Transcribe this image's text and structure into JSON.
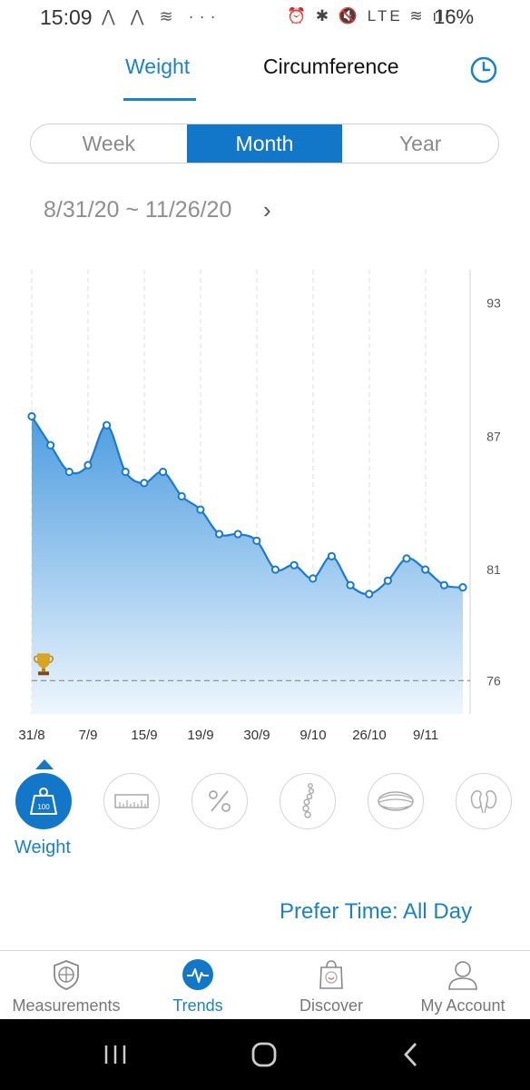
{
  "status": {
    "time": "15:09",
    "left_icons": "⋀ ⋀ ≋ ···",
    "right_icons": "⏰ ✱ 🔇 LTE ≋ ıll",
    "battery": "16%"
  },
  "tabs": {
    "weight": "Weight",
    "circumference": "Circumference"
  },
  "segments": [
    "Week",
    "Month",
    "Year"
  ],
  "active_segment": "Month",
  "date_range": "8/31/20 ~ 11/26/20",
  "chart_data": {
    "type": "area",
    "x_ticks": [
      "31/8",
      "7/9",
      "15/9",
      "19/9",
      "30/9",
      "9/10",
      "26/10",
      "9/11"
    ],
    "y_ticks": [
      93,
      87,
      81,
      76
    ],
    "ylim": [
      74.5,
      94.5
    ],
    "goal": 76,
    "series": [
      {
        "values": [
          87.9,
          86.6,
          85.4,
          85.7,
          87.5,
          85.4,
          84.9,
          85.4,
          84.3,
          83.7,
          82.6,
          82.6,
          82.3,
          81.0,
          81.2,
          80.6,
          81.6,
          80.3,
          79.9,
          80.5,
          81.5,
          81.0,
          80.3,
          80.2
        ]
      }
    ],
    "colors": {
      "line": "#1a7ad0",
      "fill_top": "#4d9de0",
      "fill_bottom": "#eef6fd",
      "goal": "#888888"
    },
    "grid": "vertical-dashed"
  },
  "metrics": [
    {
      "name": "weight",
      "label": "Weight",
      "icon": "weight-icon",
      "active": true
    },
    {
      "name": "bmi",
      "icon": "ruler-icon"
    },
    {
      "name": "body-fat",
      "icon": "percent-icon"
    },
    {
      "name": "skeletal",
      "icon": "spine-icon"
    },
    {
      "name": "muscle",
      "icon": "muscle-icon"
    },
    {
      "name": "body-water",
      "icon": "kidney-icon"
    }
  ],
  "metric_label": "Weight",
  "weight_icon_text": "100",
  "prefer_time": "Prefer Time: All Day",
  "nav": [
    {
      "label": "Measurements",
      "icon": "shield-icon"
    },
    {
      "label": "Trends",
      "icon": "pulse-icon",
      "active": true
    },
    {
      "label": "Discover",
      "icon": "bag-icon"
    },
    {
      "label": "My Account",
      "icon": "person-icon"
    }
  ],
  "sysnav": {
    "recent": "recent-apps",
    "home": "home",
    "back": "back"
  }
}
